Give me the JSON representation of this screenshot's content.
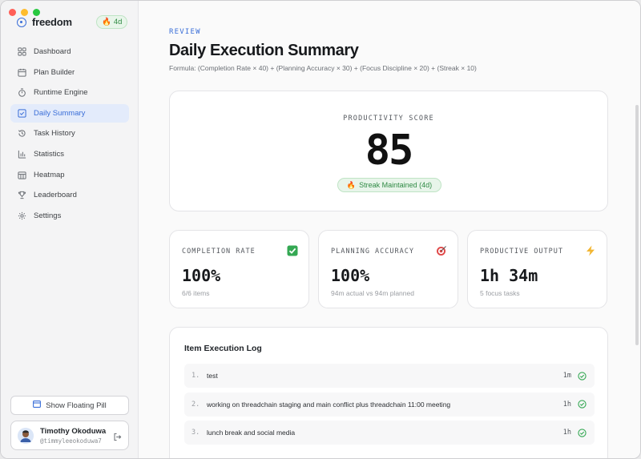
{
  "app": {
    "name": "freedom",
    "streak_badge": "4d"
  },
  "sidebar": {
    "items": [
      {
        "label": "Dashboard",
        "icon": "grid-icon"
      },
      {
        "label": "Plan Builder",
        "icon": "calendar-icon"
      },
      {
        "label": "Runtime Engine",
        "icon": "timer-icon"
      },
      {
        "label": "Daily Summary",
        "icon": "checkbox-icon",
        "active": true
      },
      {
        "label": "Task History",
        "icon": "history-icon"
      },
      {
        "label": "Statistics",
        "icon": "bar-chart-icon"
      },
      {
        "label": "Heatmap",
        "icon": "heatmap-icon"
      },
      {
        "label": "Leaderboard",
        "icon": "trophy-icon"
      },
      {
        "label": "Settings",
        "icon": "gear-icon"
      }
    ],
    "floating_pill_button": "Show Floating Pill",
    "user": {
      "name": "Timothy Okoduwa",
      "handle": "@timmyleeokoduwa7"
    }
  },
  "main": {
    "eyebrow": "REVIEW",
    "title": "Daily Execution Summary",
    "formula": "Formula: (Completion Rate × 40) + (Planning Accuracy × 30) + (Focus Discipline × 20) + (Streak × 10)",
    "score": {
      "label": "PRODUCTIVITY SCORE",
      "value": "85",
      "pill": "Streak Maintained (4d)"
    },
    "stats": [
      {
        "label": "COMPLETION RATE",
        "value": "100%",
        "sub": "6/6 items",
        "icon": "check-mark-icon"
      },
      {
        "label": "PLANNING ACCURACY",
        "value": "100%",
        "sub": "94m actual vs 94m planned",
        "icon": "target-icon"
      },
      {
        "label": "PRODUCTIVE OUTPUT",
        "value": "1h 34m",
        "sub": "5 focus tasks",
        "icon": "lightning-icon"
      }
    ],
    "log": {
      "title": "Item Execution Log",
      "items": [
        {
          "num": "1.",
          "text": "test",
          "duration": "1m"
        },
        {
          "num": "2.",
          "text": "working on threadchain staging and main conflict plus threadchain 11:00 meeting",
          "duration": "1h"
        },
        {
          "num": "3.",
          "text": "lunch break and social media",
          "duration": "1h"
        }
      ]
    }
  },
  "colors": {
    "accent": "#3b6fd8",
    "success": "#2f8a44"
  }
}
